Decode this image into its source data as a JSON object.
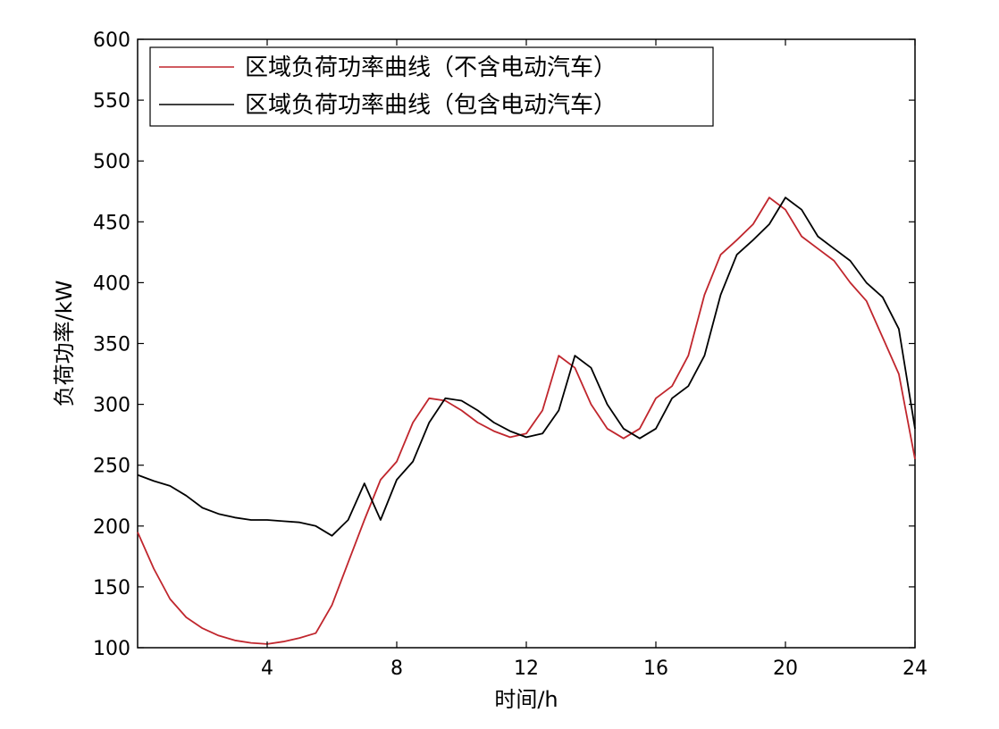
{
  "chart_data": {
    "type": "line",
    "title": "",
    "xlabel": "时间/h",
    "ylabel": "负荷功率/kW",
    "xlim": [
      0,
      24
    ],
    "ylim": [
      100,
      600
    ],
    "x_ticks": [
      "4",
      "8",
      "12",
      "16",
      "20",
      "24"
    ],
    "y_ticks": [
      "100",
      "150",
      "200",
      "250",
      "300",
      "350",
      "400",
      "450",
      "500",
      "550",
      "600"
    ],
    "grid": false,
    "legend_position": "top-left",
    "series": [
      {
        "name": "区域负荷功率曲线（不含电动汽车）",
        "color": "#c0262d",
        "x": [
          0,
          0.5,
          1,
          1.5,
          2,
          2.5,
          3,
          3.5,
          4,
          4.5,
          5,
          5.5,
          6,
          6.5,
          7,
          7.5,
          8,
          8.5,
          9,
          9.5,
          10,
          10.5,
          11,
          11.5,
          12,
          12.5,
          13,
          13.5,
          14,
          14.5,
          15,
          15.5,
          16,
          16.5,
          17,
          17.5,
          18,
          18.5,
          19,
          19.5,
          20,
          20.5,
          21,
          21.5,
          22,
          22.5,
          23,
          23.5,
          24
        ],
        "y": [
          195,
          165,
          140,
          125,
          116,
          110,
          106,
          104,
          103,
          105,
          108,
          112,
          135,
          170,
          205,
          238,
          253,
          285,
          305,
          303,
          295,
          285,
          278,
          273,
          276,
          295,
          340,
          330,
          300,
          280,
          272,
          280,
          305,
          315,
          340,
          390,
          423,
          435,
          448,
          470,
          460,
          438,
          428,
          418,
          400,
          385,
          355,
          325,
          255
        ]
      },
      {
        "name": "区域负荷功率曲线（包含电动汽车）",
        "color": "#000000",
        "x": [
          0,
          0.5,
          1,
          1.5,
          2,
          2.5,
          3,
          3.5,
          4,
          4.5,
          5,
          5.5,
          6,
          6.5,
          7,
          7.5,
          8,
          8.5,
          9,
          9.5,
          10,
          10.5,
          11,
          11.5,
          12,
          12.5,
          13,
          13.5,
          14,
          14.5,
          15,
          15.5,
          16,
          16.5,
          17,
          17.5,
          18,
          18.5,
          19,
          19.5,
          20,
          20.5,
          21,
          21.5,
          22,
          22.5,
          23,
          23.5,
          24
        ],
        "y": [
          242,
          237,
          233,
          225,
          215,
          210,
          207,
          205,
          205,
          204,
          203,
          200,
          192,
          205,
          235,
          205,
          238,
          253,
          285,
          305,
          303,
          295,
          285,
          278,
          273,
          276,
          295,
          340,
          330,
          300,
          280,
          272,
          280,
          305,
          315,
          340,
          390,
          423,
          435,
          448,
          470,
          460,
          438,
          428,
          418,
          400,
          388,
          362,
          280
        ]
      }
    ]
  }
}
